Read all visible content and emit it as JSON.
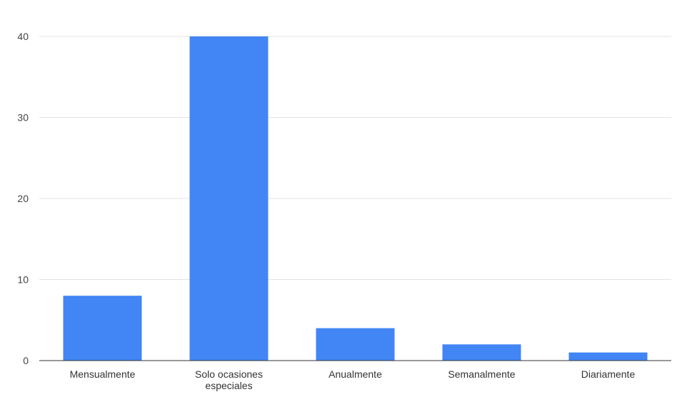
{
  "chart_data": {
    "type": "bar",
    "title": "",
    "xlabel": "",
    "ylabel": "",
    "categories": [
      "Mensualmente",
      "Solo ocasiones especiales",
      "Anualmente",
      "Semanalmente",
      "Diariamente"
    ],
    "category_lines": [
      [
        "Mensualmente"
      ],
      [
        "Solo ocasiones",
        "especiales"
      ],
      [
        "Anualmente"
      ],
      [
        "Semanalmente"
      ],
      [
        "Diariamente"
      ]
    ],
    "values": [
      8,
      40,
      4,
      2,
      1
    ],
    "ylim": [
      0,
      40
    ],
    "yticks": [
      0,
      10,
      20,
      30,
      40
    ],
    "grid": true,
    "legend": "none",
    "bar_color": "#4285f4"
  }
}
